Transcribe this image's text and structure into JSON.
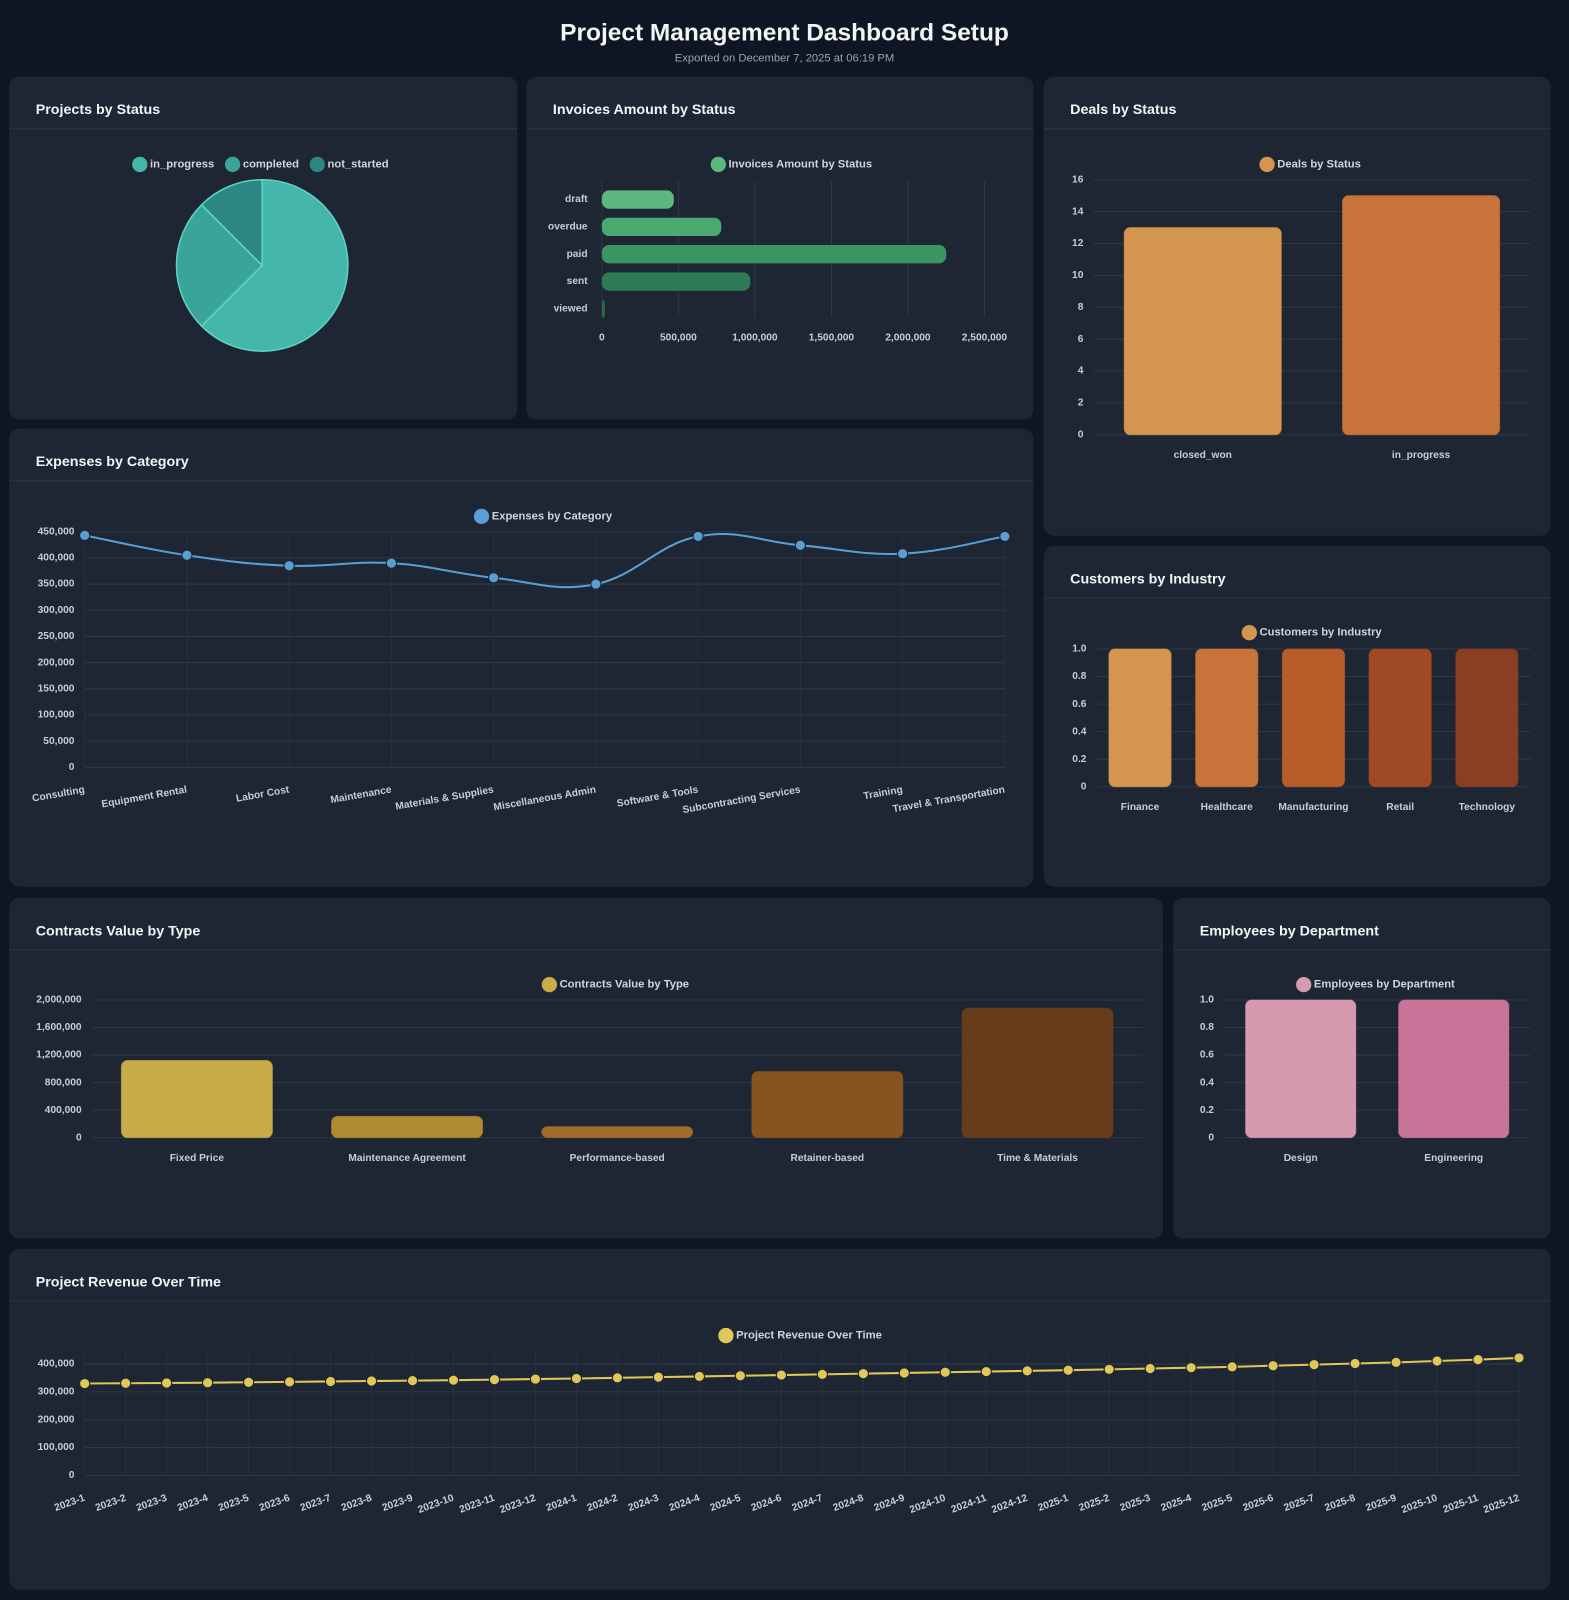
{
  "header": {
    "title": "Project Management Dashboard Setup",
    "subtitle": "Exported on December 7, 2025 at 06:19 PM"
  },
  "chart_data": [
    {
      "type": "pie",
      "title": "Projects by Status",
      "categories": [
        "in_progress",
        "completed",
        "not_started"
      ],
      "values": [
        15,
        6,
        3
      ],
      "colors": [
        "#45b7aa",
        "#3aa39a",
        "#2c8783"
      ]
    },
    {
      "type": "bar",
      "horizontal": true,
      "title": "Invoices Amount by Status",
      "categories": [
        "draft",
        "overdue",
        "paid",
        "sent",
        "viewed"
      ],
      "series": [
        {
          "name": "Invoices Amount by Status",
          "color": "#5cb87f",
          "colors": [
            "#5cb87f",
            "#4aa96f",
            "#3a9562",
            "#2e7a54",
            "#2a6a4a"
          ],
          "values": [
            470000,
            780000,
            2250000,
            970000,
            20000
          ]
        }
      ],
      "xlim": [
        0,
        2500000
      ],
      "xticks": [
        0,
        {
          "value": 500000,
          "label": "500,000"
        },
        {
          "value": 1000000,
          "label": "1,000,000"
        },
        {
          "value": 1500000,
          "label": "1,500,000"
        },
        {
          "value": 2000000,
          "label": "2,000,000"
        },
        {
          "value": 2500000,
          "label": "2,500,000"
        }
      ],
      "grid": true
    },
    {
      "type": "bar",
      "title": "Deals by Status",
      "categories": [
        "closed_won",
        "in_progress"
      ],
      "series": [
        {
          "name": "Deals by Status",
          "color": "#d4954f",
          "colors": [
            "#d4954f",
            "#c8733a"
          ],
          "values": [
            13,
            15
          ]
        }
      ],
      "ylim": [
        0,
        16
      ],
      "yticks": [
        0,
        2,
        4,
        6,
        8,
        10,
        12,
        14,
        16
      ],
      "grid": true
    },
    {
      "type": "line",
      "smooth": true,
      "title": "Expenses by Category",
      "categories": [
        "Consulting",
        "Equipment Rental",
        "Labor Cost",
        "Maintenance",
        "Materials & Supplies",
        "Miscellaneous Admin",
        "Software & Tools",
        "Subcontracting Services",
        "Training",
        "Travel & Transportation"
      ],
      "series": [
        {
          "name": "Expenses by Category",
          "color": "#5a9fd4",
          "values": [
            443000,
            405000,
            385000,
            390000,
            362000,
            350000,
            441000,
            424000,
            408000,
            441000
          ]
        }
      ],
      "ylim": [
        0,
        450000
      ],
      "yticks": [
        0,
        {
          "value": 50000,
          "label": "50,000"
        },
        {
          "value": 100000,
          "label": "100,000"
        },
        {
          "value": 150000,
          "label": "150,000"
        },
        {
          "value": 200000,
          "label": "200,000"
        },
        {
          "value": 250000,
          "label": "250,000"
        },
        {
          "value": 300000,
          "label": "300,000"
        },
        {
          "value": 350000,
          "label": "350,000"
        },
        {
          "value": 400000,
          "label": "400,000"
        },
        {
          "value": 450000,
          "label": "450,000"
        }
      ],
      "grid": true
    },
    {
      "type": "bar",
      "title": "Customers by Industry",
      "categories": [
        "Finance",
        "Healthcare",
        "Manufacturing",
        "Retail",
        "Technology"
      ],
      "series": [
        {
          "name": "Customers by Industry",
          "color": "#d4954f",
          "colors": [
            "#d4954f",
            "#c8733a",
            "#b85c28",
            "#a04a25",
            "#8a3e22"
          ],
          "values": [
            1,
            1,
            1,
            1,
            1
          ]
        }
      ],
      "ylim": [
        0,
        1
      ],
      "yticks": [
        0,
        0.2,
        0.4,
        0.6,
        0.8,
        {
          "value": 1,
          "label": "1.0"
        }
      ],
      "grid": true
    },
    {
      "type": "bar",
      "title": "Contracts Value by Type",
      "categories": [
        "Fixed Price",
        "Maintenance Agreement",
        "Performance-based",
        "Retainer-based",
        "Time & Materials"
      ],
      "series": [
        {
          "name": "Contracts Value by Type",
          "color": "#c8ac48",
          "colors": [
            "#c8ac48",
            "#b08a30",
            "#a06e28",
            "#85541f",
            "#673c1a"
          ],
          "values": [
            1120000,
            310000,
            160000,
            960000,
            1880000
          ]
        }
      ],
      "ylim": [
        0,
        2000000
      ],
      "yticks": [
        0,
        {
          "value": 400000,
          "label": "400,000"
        },
        {
          "value": 800000,
          "label": "800,000"
        },
        {
          "value": 1200000,
          "label": "1,200,000"
        },
        {
          "value": 1600000,
          "label": "1,600,000"
        },
        {
          "value": 2000000,
          "label": "2,000,000"
        }
      ],
      "grid": true
    },
    {
      "type": "bar",
      "title": "Employees by Department",
      "categories": [
        "Design",
        "Engineering"
      ],
      "series": [
        {
          "name": "Employees by Department",
          "color": "#d69ab0",
          "colors": [
            "#d69ab0",
            "#c87498"
          ],
          "values": [
            1,
            1
          ]
        }
      ],
      "ylim": [
        0,
        1
      ],
      "yticks": [
        0,
        0.2,
        0.4,
        0.6,
        0.8,
        {
          "value": 1,
          "label": "1.0"
        }
      ],
      "grid": true
    },
    {
      "type": "line",
      "smooth": false,
      "title": "Project Revenue Over Time",
      "categories": [
        "2023-1",
        "2023-2",
        "2023-3",
        "2023-4",
        "2023-5",
        "2023-6",
        "2023-7",
        "2023-8",
        "2023-9",
        "2023-10",
        "2023-11",
        "2023-12",
        "2024-1",
        "2024-2",
        "2024-3",
        "2024-4",
        "2024-5",
        "2024-6",
        "2024-7",
        "2024-8",
        "2024-9",
        "2024-10",
        "2024-11",
        "2024-12",
        "2025-1",
        "2025-2",
        "2025-3",
        "2025-4",
        "2025-5",
        "2025-6",
        "2025-7",
        "2025-8",
        "2025-9",
        "2025-10",
        "2025-11",
        "2025-12"
      ],
      "series": [
        {
          "name": "Project Revenue Over Time",
          "color": "#e0c758",
          "values": [
            330000,
            331000,
            332000,
            333000,
            334500,
            336000,
            337500,
            339000,
            340500,
            342000,
            344000,
            346000,
            348000,
            350500,
            353000,
            355500,
            358000,
            360500,
            363000,
            365500,
            368000,
            370500,
            373000,
            375500,
            378000,
            381000,
            384000,
            387000,
            390000,
            394000,
            398000,
            402000,
            406000,
            411000,
            416000,
            422000
          ]
        }
      ],
      "ylim": [
        0,
        440000
      ],
      "yticks": [
        0,
        {
          "value": 100000,
          "label": "100,000"
        },
        {
          "value": 200000,
          "label": "200,000"
        },
        {
          "value": 300000,
          "label": "300,000"
        },
        {
          "value": 400000,
          "label": "400,000"
        }
      ],
      "grid": true
    }
  ]
}
